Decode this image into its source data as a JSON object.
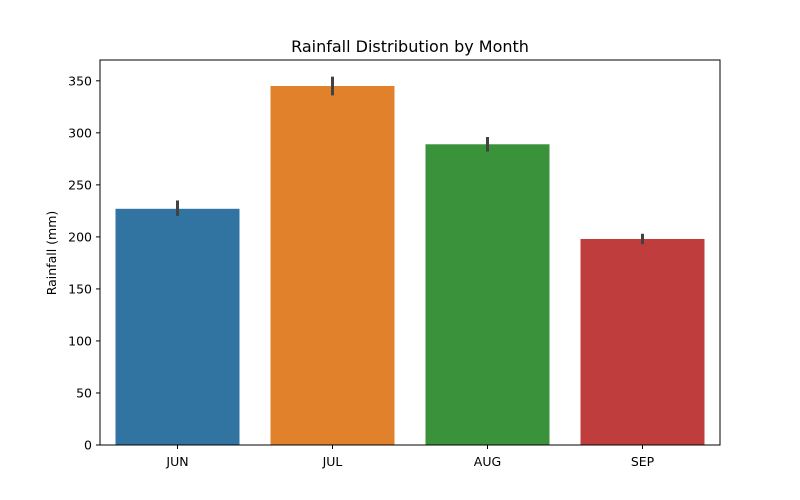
{
  "chart_data": {
    "type": "bar",
    "title": "Rainfall Distribution by Month",
    "xlabel": "",
    "ylabel": "Rainfall (mm)",
    "categories": [
      "JUN",
      "JUL",
      "AUG",
      "SEP"
    ],
    "values": [
      227,
      345,
      289,
      198
    ],
    "error_bars": [
      {
        "low": 220,
        "high": 235
      },
      {
        "low": 336,
        "high": 354
      },
      {
        "low": 282,
        "high": 296
      },
      {
        "low": 193,
        "high": 203
      }
    ],
    "colors": [
      "#3274a1",
      "#e1812c",
      "#3a923a",
      "#c03d3e"
    ],
    "error_color": "#424242",
    "ylim": [
      0,
      370
    ],
    "yticks": [
      0,
      50,
      100,
      150,
      200,
      250,
      300,
      350
    ],
    "grid": false,
    "legend": "none"
  }
}
